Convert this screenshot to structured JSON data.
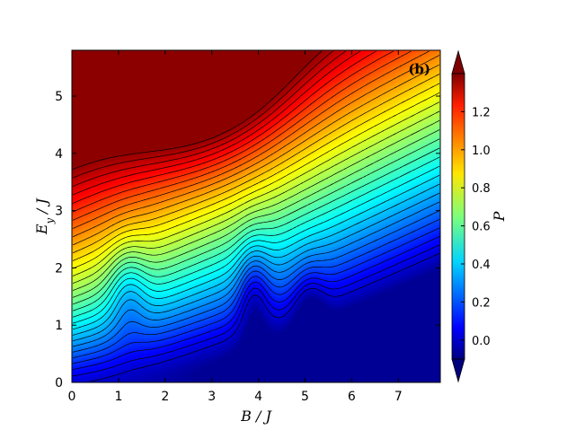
{
  "chart_data": {
    "type": "heatmap",
    "subtype": "filled-contour with line contours",
    "panel_label": "(b)",
    "xlabel": "B / J",
    "ylabel": "E_y / J",
    "colorbar_label": "P",
    "xlim": [
      0,
      7.9
    ],
    "ylim": [
      0,
      5.8
    ],
    "xticks": [
      0,
      1,
      2,
      3,
      4,
      5,
      6,
      7
    ],
    "yticks": [
      0,
      1,
      2,
      3,
      4,
      5
    ],
    "colorbar": {
      "colormap": "jet",
      "range": [
        -0.1,
        1.4
      ],
      "ticks": [
        0.0,
        0.2,
        0.4,
        0.6,
        0.8,
        1.0,
        1.2
      ],
      "extend": "both"
    },
    "contour_line_color": "#000000",
    "features": {
      "maximum_region": {
        "B": 2.7,
        "E_y": 5.8,
        "P": 1.38
      },
      "minimum_region": {
        "B_range": [
          0,
          7.9
        ],
        "E_y": 0,
        "P": 0.0
      },
      "diagonal_gradient": "P decreases toward large B and small E_y",
      "dips_along_B": [
        1.2,
        3.9,
        5.1
      ]
    }
  }
}
